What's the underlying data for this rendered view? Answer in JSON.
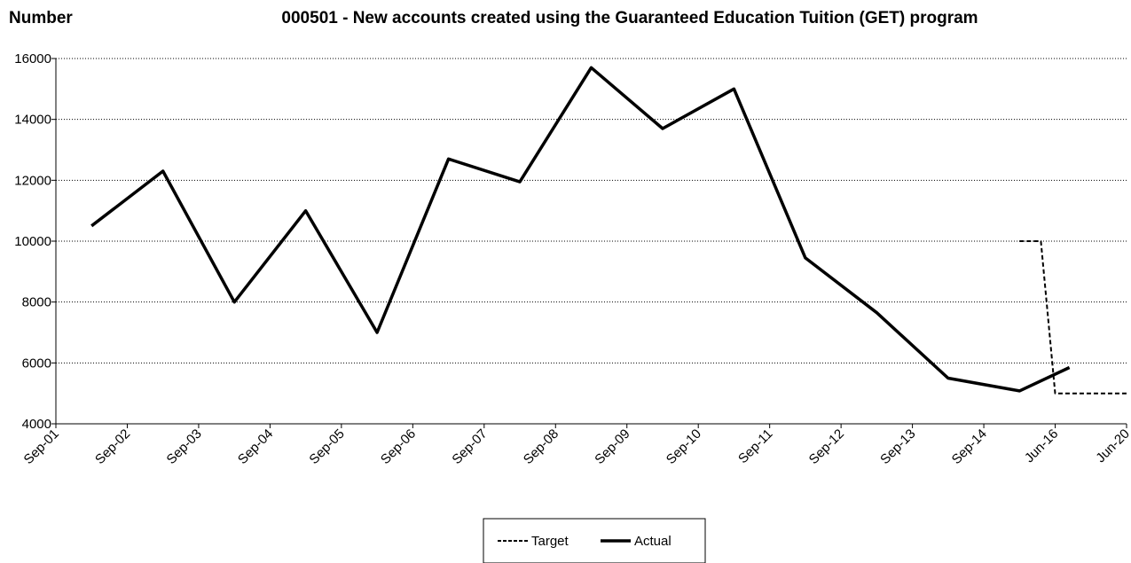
{
  "chart_data": {
    "type": "line",
    "title": "000501 - New accounts created using the Guaranteed Education Tuition (GET) program",
    "ylabel": "Number",
    "xlabel": "",
    "ylim": [
      4000,
      16000
    ],
    "yticks": [
      4000,
      6000,
      8000,
      10000,
      12000,
      14000,
      16000
    ],
    "categories": [
      "Sep-01",
      "Sep-02",
      "Sep-03",
      "Sep-04",
      "Sep-05",
      "Sep-06",
      "Sep-07",
      "Sep-08",
      "Sep-09",
      "Sep-10",
      "Sep-11",
      "Sep-12",
      "Sep-13",
      "Sep-14",
      "Jun-16",
      "Jun-20"
    ],
    "grid": "horizontal dotted",
    "legend_position": "bottom-center",
    "series": [
      {
        "name": "Target",
        "style": "dashed",
        "color": "#000000",
        "x": [
          13.5,
          13.8,
          14.0,
          14.3,
          14.6,
          15.0
        ],
        "values": [
          10000,
          10000,
          5000,
          5000,
          5000,
          5000
        ]
      },
      {
        "name": "Actual",
        "style": "solid",
        "color": "#000000",
        "x": [
          0.5,
          1.5,
          2.5,
          3.5,
          4.5,
          5.5,
          6.5,
          7.5,
          8.5,
          9.5,
          10.5,
          11.5,
          12.5,
          13.5,
          14.2
        ],
        "values": [
          10500,
          12300,
          8000,
          11000,
          7000,
          12700,
          11950,
          15700,
          13700,
          15000,
          9450,
          7650,
          5500,
          5080,
          5850
        ]
      }
    ]
  }
}
